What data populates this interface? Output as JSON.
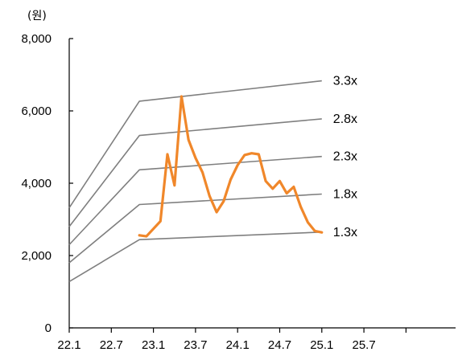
{
  "chart_data": {
    "type": "line",
    "unit_label": "(원)",
    "title": "",
    "xlabel": "",
    "ylabel": "",
    "ylim": [
      0,
      8000
    ],
    "y_ticks": [
      {
        "value": 0,
        "label": "0"
      },
      {
        "value": 2000,
        "label": "2,000"
      },
      {
        "value": 4000,
        "label": "4,000"
      },
      {
        "value": 6000,
        "label": "6,000"
      },
      {
        "value": 8000,
        "label": "8,000"
      }
    ],
    "x_ticks": [
      "22.1",
      "22.7",
      "23.1",
      "23.7",
      "24.1",
      "24.7",
      "25.1",
      "25.7"
    ],
    "grid": false,
    "series": [
      {
        "role": "price",
        "color": "#F0872A",
        "x": [
          "22.11",
          "22.12",
          "23.2",
          "23.3",
          "23.4",
          "23.5",
          "23.6",
          "23.7",
          "23.8",
          "23.9",
          "23.10",
          "23.11",
          "23.12",
          "24.1",
          "24.2",
          "24.3",
          "24.4",
          "24.5",
          "24.6",
          "24.7",
          "24.8",
          "24.9",
          "24.10",
          "24.11",
          "24.12",
          "25.1"
        ],
        "values": [
          2560,
          2530,
          2950,
          4800,
          3940,
          6400,
          5200,
          4700,
          4300,
          3650,
          3200,
          3500,
          4100,
          4500,
          4780,
          4830,
          4800,
          4060,
          3850,
          4060,
          3720,
          3900,
          3350,
          2920,
          2680,
          2640
        ]
      },
      {
        "name": "3.3x",
        "role": "band",
        "color": "#7F7F7F",
        "x": [
          "22.1",
          "22.11",
          "25.1"
        ],
        "values": [
          3320,
          6270,
          6830
        ]
      },
      {
        "name": "2.8x",
        "role": "band",
        "color": "#7F7F7F",
        "x": [
          "22.1",
          "22.11",
          "25.1"
        ],
        "values": [
          2800,
          5320,
          5780
        ]
      },
      {
        "name": "2.3x",
        "role": "band",
        "color": "#7F7F7F",
        "x": [
          "22.1",
          "22.11",
          "25.1"
        ],
        "values": [
          2300,
          4370,
          4740
        ]
      },
      {
        "name": "1.8x",
        "role": "band",
        "color": "#7F7F7F",
        "x": [
          "22.1",
          "22.11",
          "25.1"
        ],
        "values": [
          1800,
          3410,
          3700
        ]
      },
      {
        "name": "1.3x",
        "role": "band",
        "color": "#7F7F7F",
        "x": [
          "22.1",
          "22.11",
          "25.1"
        ],
        "values": [
          1280,
          2440,
          2650
        ]
      }
    ]
  }
}
